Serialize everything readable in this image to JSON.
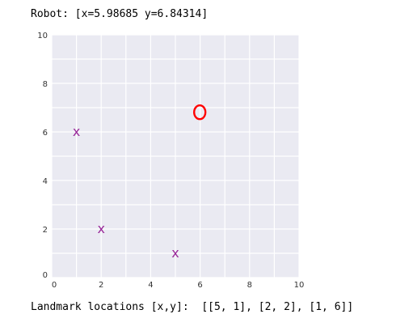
{
  "output": {
    "robot_label": "Robot:",
    "robot_value": "[x=5.98685 y=6.84314]",
    "landmarks_label": "Landmark locations [x,y]:",
    "landmarks_value": "[[5, 1], [2, 2], [1, 6]]"
  },
  "chart_data": {
    "type": "scatter",
    "xlim": [
      0,
      10
    ],
    "ylim": [
      0,
      10
    ],
    "grid": true,
    "background": "#eaeaf2",
    "x_ticks": [
      0,
      2,
      4,
      6,
      8,
      10
    ],
    "y_ticks": [
      0,
      2,
      4,
      6,
      8,
      10
    ],
    "robot": {
      "x": 5.98685,
      "y": 6.84314,
      "marker": "o",
      "color": "#ff0000"
    },
    "landmarks": {
      "marker": "x",
      "color": "#9a2a9a",
      "points": [
        [
          5,
          1
        ],
        [
          2,
          2
        ],
        [
          1,
          6
        ]
      ]
    }
  }
}
